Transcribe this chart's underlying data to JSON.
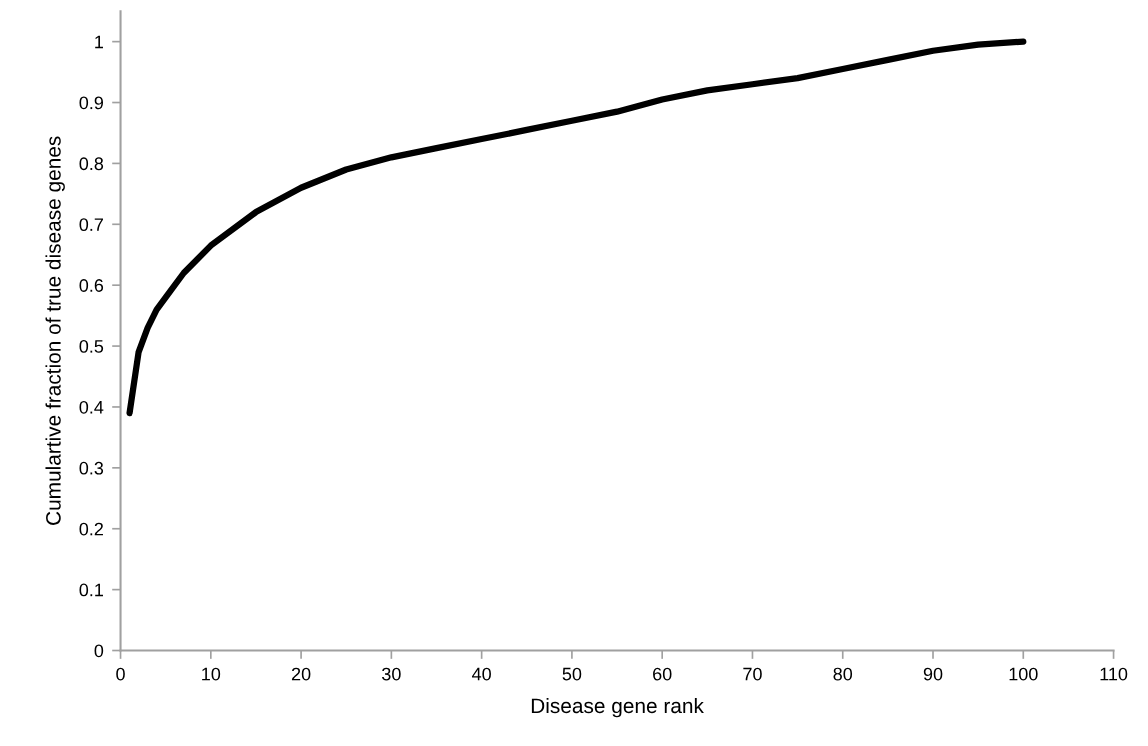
{
  "chart_data": {
    "type": "line",
    "xlabel": "Disease gene rank",
    "ylabel": "Cumulartive fraction of true disease genes",
    "x": [
      1,
      2,
      3,
      4,
      5,
      7,
      10,
      15,
      20,
      25,
      30,
      35,
      40,
      45,
      50,
      55,
      60,
      65,
      70,
      75,
      80,
      85,
      90,
      95,
      100
    ],
    "series": [
      {
        "color": "#000000",
        "values": [
          0.39,
          0.49,
          0.53,
          0.56,
          0.58,
          0.62,
          0.665,
          0.72,
          0.76,
          0.79,
          0.81,
          0.825,
          0.84,
          0.855,
          0.87,
          0.885,
          0.905,
          0.92,
          0.93,
          0.94,
          0.955,
          0.97,
          0.985,
          0.995,
          1.0
        ]
      }
    ],
    "xlim": [
      0,
      110
    ],
    "xticks": [
      0,
      10,
      20,
      30,
      40,
      50,
      60,
      70,
      80,
      90,
      100,
      110
    ],
    "ylim": [
      0,
      1.05
    ],
    "yticks": [
      0,
      0.1,
      0.2,
      0.3,
      0.4,
      0.5,
      0.6,
      0.7,
      0.8,
      0.9,
      1
    ],
    "grid": false,
    "marker": "none",
    "line_style": "solid"
  }
}
